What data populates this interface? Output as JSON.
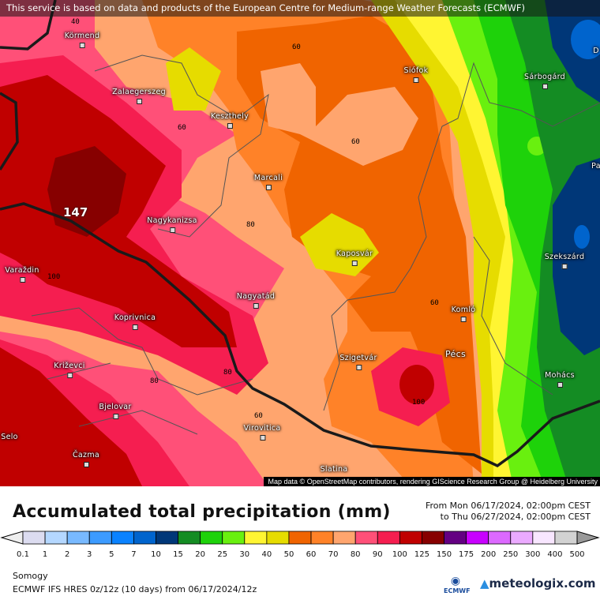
{
  "banner": "This service is based on data and products of the European Centre for Medium-range Weather Forecasts (ECMWF)",
  "attribution": "Map data © OpenStreetMap contributors, rendering GIScience Research Group @ Heidelberg University",
  "title": "Accumulated total precipitation (mm)",
  "period": {
    "from": "From Mon 06/17/2024, 02:00pm CEST",
    "to": "to Thu 06/27/2024, 02:00pm CEST"
  },
  "region": "Somogy",
  "model": "ECMWF IFS HRES 0z/12z (10 days) from  06/17/2024/12z",
  "logos": {
    "ecmwf": "ECMWF",
    "meteologix": "meteologix.com"
  },
  "max_value": "147",
  "contour_labels": [
    "40",
    "60",
    "60",
    "80",
    "80",
    "60",
    "60",
    "100",
    "60",
    "80"
  ],
  "cities": [
    "Körmend",
    "Zalaegerszeg",
    "Keszthely",
    "Siófok",
    "Sárbogárd",
    "Marcali",
    "Nagykanizsa",
    "Kaposvár",
    "Szekszárd",
    "Varaždin",
    "Nagyatád",
    "Koprivnica",
    "Komló",
    "Pécs",
    "Szigetvár",
    "Križevci",
    "Mohács",
    "Bjelovar",
    "Virovitica",
    "Selo",
    "Čazma",
    "Slatina",
    "D",
    "Pa"
  ],
  "legend": {
    "labels": [
      "0.1",
      "1",
      "2",
      "3",
      "5",
      "7",
      "10",
      "15",
      "20",
      "25",
      "30",
      "40",
      "50",
      "60",
      "70",
      "80",
      "90",
      "100",
      "125",
      "150",
      "175",
      "200",
      "250",
      "300",
      "400",
      "500"
    ],
    "colors": [
      "#dcdcf0",
      "#b4d7ff",
      "#78b9ff",
      "#3c9bff",
      "#0a82ff",
      "#0064cd",
      "#003778",
      "#148c23",
      "#1ed20a",
      "#69f00f",
      "#fff532",
      "#e6dc00",
      "#f06400",
      "#ff8228",
      "#ffa56e",
      "#ff5078",
      "#f51e50",
      "#c00000",
      "#870000",
      "#640082",
      "#c800ff",
      "#dc69ff",
      "#ebaaff",
      "#f8e6ff",
      "#d2d2d2"
    ]
  }
}
